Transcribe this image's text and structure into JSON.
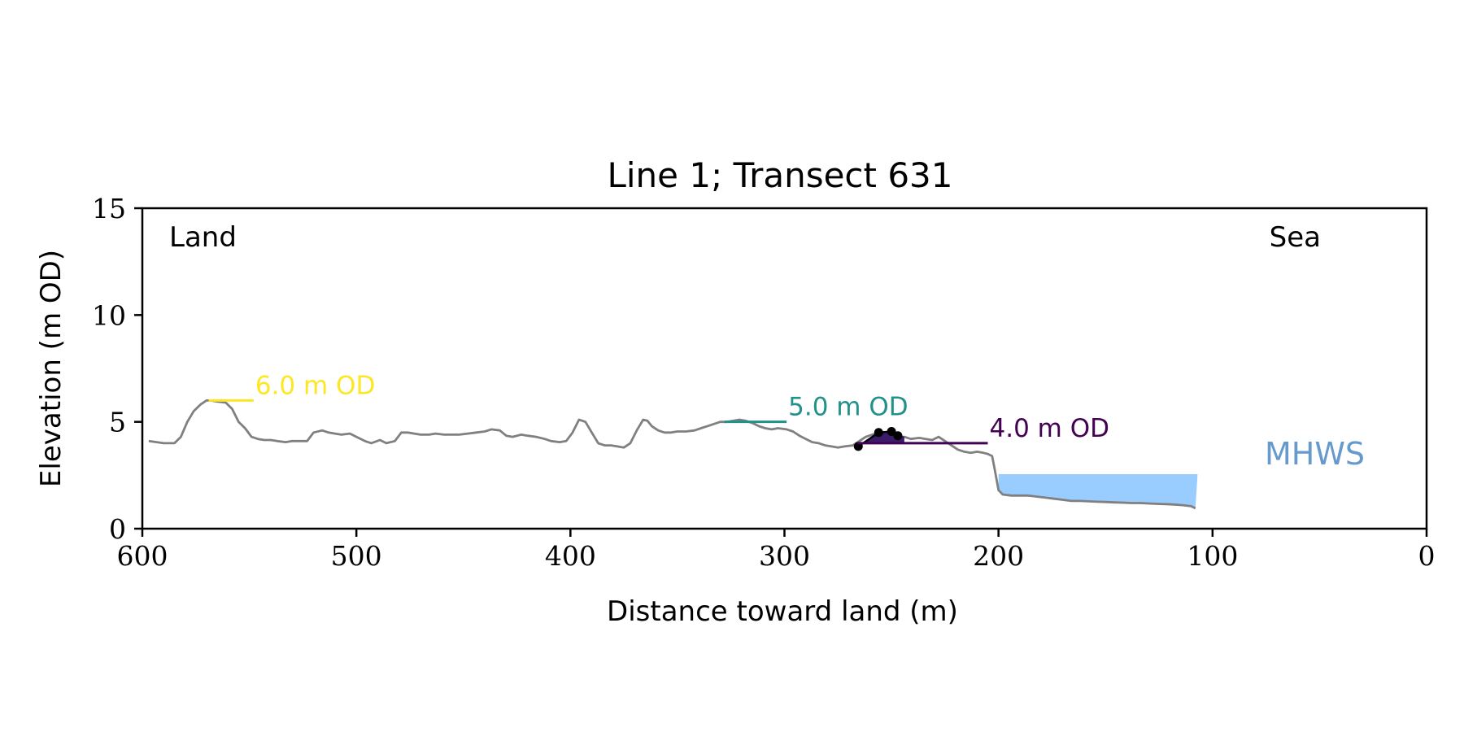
{
  "chart_data": {
    "type": "line",
    "title": "Line 1; Transect 631",
    "xlabel": "Distance toward land (m)",
    "ylabel": "Elevation (m OD)",
    "xlim": [
      600,
      0
    ],
    "ylim": [
      0,
      15
    ],
    "x_ticks": [
      600,
      500,
      400,
      300,
      200,
      100,
      0
    ],
    "y_ticks": [
      0,
      5,
      10,
      15
    ],
    "grid": false,
    "corner_labels": {
      "left": "Land",
      "right": "Sea"
    },
    "profile": {
      "color": "#808080",
      "x": [
        597,
        590,
        585,
        582,
        579,
        576,
        573,
        570,
        568,
        565,
        561,
        558,
        555,
        552,
        549,
        546,
        543,
        540,
        537,
        533,
        530,
        527,
        523,
        520,
        516,
        513,
        510,
        507,
        503,
        500,
        496,
        493,
        489,
        486,
        482,
        479,
        476,
        473,
        470,
        466,
        463,
        459,
        455,
        452,
        448,
        444,
        440,
        437,
        433,
        430,
        427,
        423,
        420,
        416,
        412,
        409,
        405,
        402,
        399,
        396,
        393,
        390,
        387,
        384,
        381,
        378,
        375,
        372,
        369,
        366,
        364,
        362,
        359,
        356,
        353,
        350,
        346,
        342,
        339,
        336,
        333,
        330,
        327,
        324,
        321,
        318,
        315,
        312,
        309,
        306,
        303,
        299,
        296,
        293,
        290,
        287,
        284,
        281,
        278,
        275,
        272,
        268,
        265,
        262,
        259,
        256,
        253,
        250,
        247,
        244,
        241,
        237,
        234,
        231,
        228,
        225,
        222,
        219,
        216,
        213,
        210,
        207,
        205,
        203,
        202,
        200,
        198,
        194,
        190,
        186,
        182,
        178,
        174,
        170,
        166,
        162,
        158,
        154,
        150,
        146,
        142,
        138,
        134,
        130,
        126,
        122,
        118,
        114,
        110,
        108
      ],
      "y": [
        4.1,
        4.0,
        4.0,
        4.3,
        5.0,
        5.5,
        5.8,
        6.0,
        6.0,
        5.95,
        5.9,
        5.6,
        5.0,
        4.7,
        4.3,
        4.2,
        4.15,
        4.15,
        4.1,
        4.05,
        4.1,
        4.1,
        4.1,
        4.5,
        4.6,
        4.5,
        4.45,
        4.4,
        4.45,
        4.3,
        4.1,
        4.0,
        4.15,
        4.0,
        4.1,
        4.5,
        4.5,
        4.45,
        4.4,
        4.4,
        4.45,
        4.4,
        4.4,
        4.4,
        4.45,
        4.5,
        4.55,
        4.65,
        4.6,
        4.35,
        4.3,
        4.4,
        4.35,
        4.3,
        4.2,
        4.1,
        4.05,
        4.1,
        4.5,
        5.1,
        5.0,
        4.5,
        4.0,
        3.9,
        3.9,
        3.85,
        3.8,
        4.0,
        4.6,
        5.1,
        5.05,
        4.8,
        4.6,
        4.5,
        4.5,
        4.55,
        4.55,
        4.6,
        4.7,
        4.8,
        4.9,
        5.0,
        5.0,
        5.05,
        5.1,
        5.05,
        4.95,
        4.8,
        4.7,
        4.65,
        4.7,
        4.65,
        4.55,
        4.35,
        4.2,
        4.05,
        4.0,
        3.9,
        3.85,
        3.8,
        3.85,
        3.9,
        4.1,
        4.3,
        4.4,
        4.5,
        4.5,
        4.4,
        4.3,
        4.3,
        4.2,
        4.25,
        4.2,
        4.15,
        4.3,
        4.1,
        3.9,
        3.7,
        3.6,
        3.55,
        3.6,
        3.55,
        3.5,
        3.4,
        2.9,
        1.8,
        1.6,
        1.55,
        1.55,
        1.55,
        1.5,
        1.45,
        1.4,
        1.35,
        1.3,
        1.3,
        1.28,
        1.26,
        1.25,
        1.23,
        1.22,
        1.2,
        1.2,
        1.18,
        1.16,
        1.15,
        1.13,
        1.1,
        1.05,
        0.95
      ]
    },
    "levels": [
      {
        "label": "6.0 m OD",
        "y": 6.0,
        "x_start": 569,
        "x_end": 548,
        "color": "#fde725"
      },
      {
        "label": "5.0 m OD",
        "y": 5.0,
        "x_start": 328,
        "x_end": 299,
        "color": "#21918c"
      },
      {
        "label": "4.0 m OD",
        "y": 4.0,
        "x_start": 266,
        "x_end": 205,
        "color": "#440154"
      }
    ],
    "highlight": {
      "color": "#3b1c6b",
      "x": [
        265,
        256,
        250,
        246,
        244
      ],
      "y": [
        3.85,
        4.5,
        4.55,
        4.4,
        4.3
      ],
      "points": [
        {
          "x": 265.5,
          "y": 3.85
        },
        {
          "x": 256,
          "y": 4.5
        },
        {
          "x": 250,
          "y": 4.55
        },
        {
          "x": 247,
          "y": 4.35
        }
      ]
    },
    "mhws": {
      "label": "MHWS",
      "label_color": "#6699cc",
      "color": "#99ccff",
      "x_start": 200,
      "x_end": 107,
      "y_top": 2.55
    }
  }
}
